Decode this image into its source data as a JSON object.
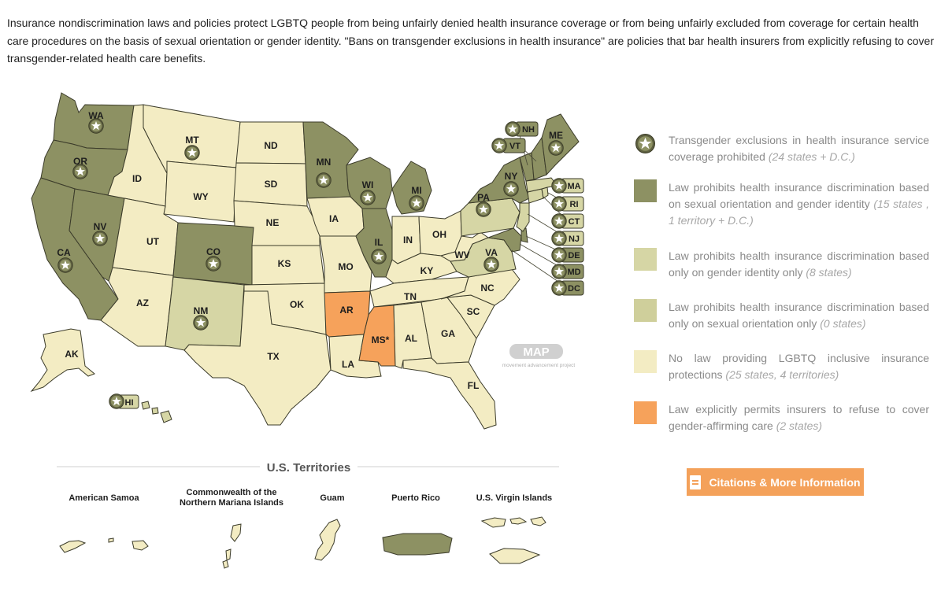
{
  "intro_text": "Insurance nondiscrimination laws and policies protect LGBTQ people from being unfairly denied health insurance coverage or from being unfairly excluded from coverage for certain health care procedures on the basis of sexual orientation or gender identity. \"Bans on transgender exclusions in health insurance\" are policies that bar health insurers from explicitly refusing to cover transgender-related health care benefits.",
  "colors": {
    "so_gi": "#8d9163",
    "gi_only": "#d6d6a5",
    "so_only": "#cfcf9b",
    "no_law": "#f3ecc3",
    "permits_refusal": "#f6a25b",
    "star_badge": "#6d6f47",
    "button": "#f4a15a"
  },
  "states": {
    "WA": "WA",
    "OR": "OR",
    "CA": "CA",
    "NV": "NV",
    "ID": "ID",
    "MT": "MT",
    "WY": "WY",
    "UT": "UT",
    "AZ": "AZ",
    "CO": "CO",
    "NM": "NM",
    "ND": "ND",
    "SD": "SD",
    "NE": "NE",
    "KS": "KS",
    "OK": "OK",
    "TX": "TX",
    "MN": "MN",
    "IA": "IA",
    "MO": "MO",
    "AR": "AR",
    "LA": "LA",
    "WI": "WI",
    "IL": "IL",
    "MI": "MI",
    "IN": "IN",
    "OH": "OH",
    "KY": "KY",
    "TN": "TN",
    "MS": "MS*",
    "AL": "AL",
    "GA": "GA",
    "FL": "FL",
    "SC": "SC",
    "NC": "NC",
    "VA": "VA",
    "WV": "WV",
    "PA": "PA",
    "NY": "NY",
    "AK": "AK",
    "HI": "HI",
    "NH": "NH",
    "VT": "VT",
    "ME": "ME",
    "MA": "MA",
    "RI": "RI",
    "CT": "CT",
    "NJ": "NJ",
    "DE": "DE",
    "MD": "MD",
    "DC": "DC"
  },
  "watermark": {
    "logo": "MAP",
    "tagline": "movement advancement project"
  },
  "territories": {
    "title": "U.S. Territories",
    "names": [
      "American Samoa",
      "Commonwealth of the",
      "Northern Mariana Islands",
      "Guam",
      "Puerto Rico",
      "U.S. Virgin Islands"
    ]
  },
  "legend": [
    {
      "icon": "star-icon",
      "text": "Transgender exclusions in health insurance service coverage prohibited",
      "note": "(24 states + D.C.)"
    },
    {
      "icon": "swatch-so-gi",
      "text": "Law prohibits health insurance discrimination based on sexual orientation and gender identity",
      "note": "(15 states , 1 territory + D.C.)"
    },
    {
      "icon": "swatch-gi-only",
      "text": "Law prohibits health insurance discrimination based only on gender identity only",
      "note": "(8 states)"
    },
    {
      "icon": "swatch-so-only",
      "text": "Law prohibits health insurance discrimination based only on sexual orientation only",
      "note": "(0 states)"
    },
    {
      "icon": "swatch-no-law",
      "text": "No law providing LGBTQ inclusive insurance protections",
      "note": "(25 states, 4 territories)"
    },
    {
      "icon": "swatch-permits",
      "text": "Law explicitly permits insurers to refuse to cover gender-affirming care",
      "note": "(2 states)"
    }
  ],
  "button": {
    "label": "Citations & More Information",
    "icon": "document-icon"
  }
}
